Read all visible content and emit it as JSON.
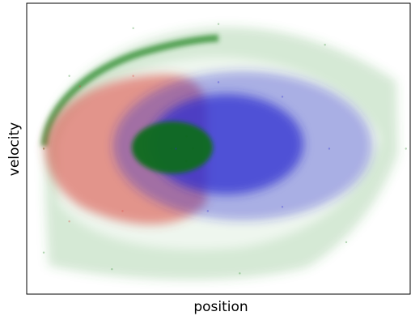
{
  "chart_data": {
    "type": "scatter",
    "title": "",
    "xlabel": "position",
    "ylabel": "velocity",
    "xticks": "none",
    "yticks": "none",
    "grid": false,
    "legend": "none",
    "xlim": [
      -1.2,
      0.6
    ],
    "ylim": [
      -0.07,
      0.07
    ],
    "series": [
      {
        "color": "#2e8b2e",
        "shape": "outer halo / escaping band",
        "points": [
          [
            -1.12,
            0.0
          ],
          [
            -1.0,
            0.035
          ],
          [
            -0.7,
            0.058
          ],
          [
            -0.3,
            0.06
          ],
          [
            0.2,
            0.05
          ],
          [
            0.58,
            0.0
          ],
          [
            0.3,
            -0.045
          ],
          [
            -0.2,
            -0.06
          ],
          [
            -0.8,
            -0.058
          ],
          [
            -1.12,
            -0.05
          ]
        ]
      },
      {
        "color": "#d9413a",
        "shape": "left lobe",
        "points": [
          [
            -1.12,
            0.0
          ],
          [
            -0.95,
            0.03
          ],
          [
            -0.7,
            0.035
          ],
          [
            -0.75,
            -0.03
          ],
          [
            -1.0,
            -0.035
          ]
        ]
      },
      {
        "color": "#2a2ad0",
        "shape": "central ellipse",
        "points": [
          [
            -0.5,
            0.0
          ],
          [
            -0.3,
            0.032
          ],
          [
            0.0,
            0.025
          ],
          [
            0.22,
            0.0
          ],
          [
            0.0,
            -0.028
          ],
          [
            -0.35,
            -0.03
          ]
        ]
      },
      {
        "color": "#0f6b1a",
        "shape": "core cluster",
        "points": [
          [
            -0.52,
            0.0
          ],
          [
            -0.45,
            0.006
          ],
          [
            -0.42,
            0.0
          ],
          [
            -0.45,
            -0.006
          ]
        ]
      }
    ]
  }
}
